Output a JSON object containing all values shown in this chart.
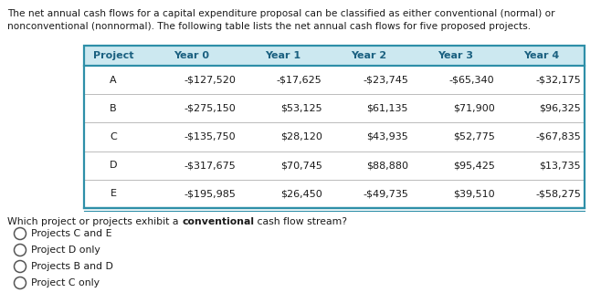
{
  "intro_text_line1": "The net annual cash flows for a capital expenditure proposal can be classified as either conventional (normal) or",
  "intro_text_line2": "nonconventional (nonnormal). The following table lists the net annual cash flows for five proposed projects.",
  "table_headers": [
    "Project",
    "Year 0",
    "Year 1",
    "Year 2",
    "Year 3",
    "Year 4"
  ],
  "table_rows": [
    [
      "A",
      "-$127,520",
      "-$17,625",
      "-$23,745",
      "-$65,340",
      "-$32,175"
    ],
    [
      "B",
      "-$275,150",
      "$53,125",
      "$61,135",
      "$71,900",
      "$96,325"
    ],
    [
      "C",
      "-$135,750",
      "$28,120",
      "$43,935",
      "$52,775",
      "-$67,835"
    ],
    [
      "D",
      "-$317,675",
      "$70,745",
      "$88,880",
      "$95,425",
      "$13,735"
    ],
    [
      "E",
      "-$195,985",
      "$26,450",
      "-$49,735",
      "$39,510",
      "-$58,275"
    ]
  ],
  "question_plain1": "Which project or projects exhibit a ",
  "question_bold": "conventional",
  "question_plain2": " cash flow stream?",
  "choices": [
    "Projects C and E",
    "Project D only",
    "Projects B and D",
    "Project C only"
  ],
  "header_bg": "#cce8f0",
  "header_text_color": "#1a6080",
  "table_border": "#2e8fa8",
  "sep_color": "#bbbbbb",
  "body_color": "#1a1a1a",
  "bg_color": "#ffffff",
  "font_size_intro": 7.6,
  "font_size_table": 8.0,
  "font_size_q": 7.8,
  "font_size_choice": 7.8
}
